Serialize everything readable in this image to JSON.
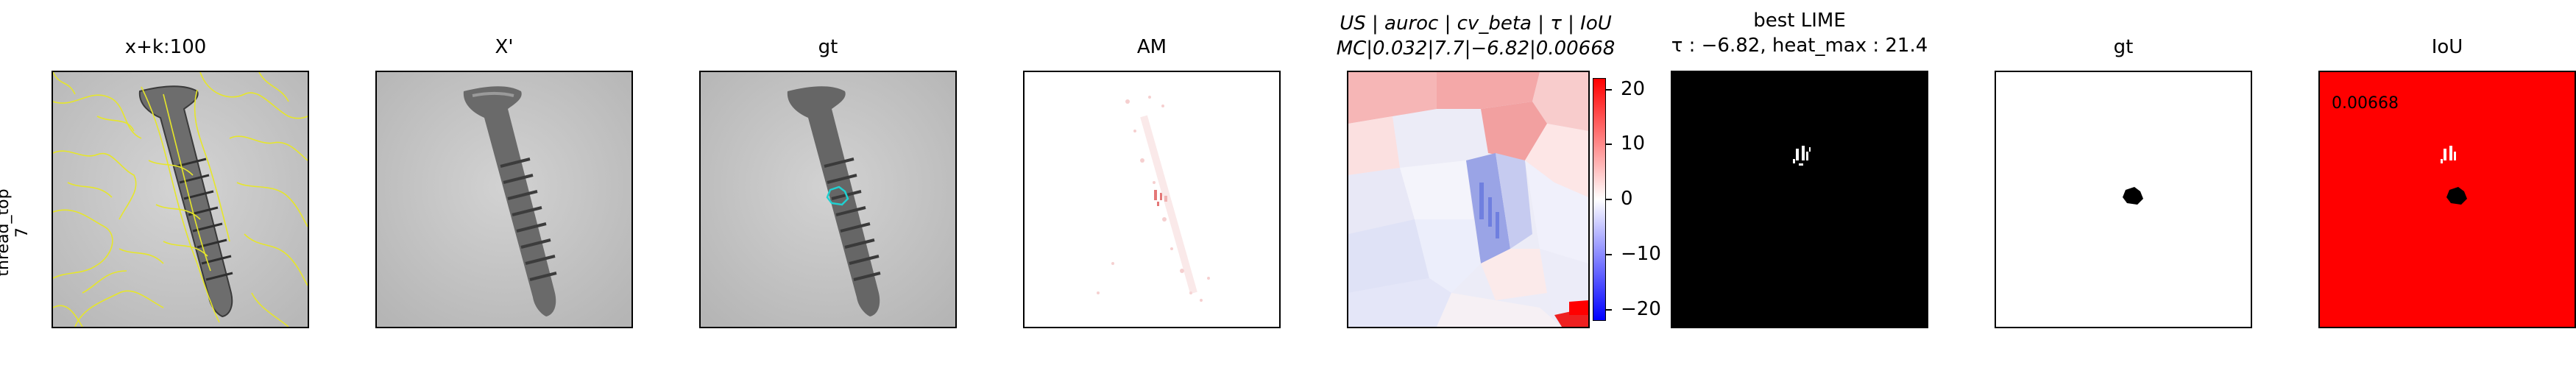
{
  "row_label": {
    "line1": "thread_top",
    "line2": "7"
  },
  "panels": [
    {
      "title": "x+k:100"
    },
    {
      "title": "X'"
    },
    {
      "title": "gt"
    },
    {
      "title": "AM"
    },
    {
      "title_line1": "US | auroc | cv_beta | τ | IoU",
      "title_line2": "MC|0.032|7.7|−6.82|0.00668"
    },
    {
      "title_line1": "best LIME",
      "title_line2": "τ : −6.82, heat_max : 21.4"
    },
    {
      "title": "gt"
    },
    {
      "title": "IoU",
      "annotation": "0.00668"
    }
  ],
  "chart_data": {
    "type": "heatmap",
    "colorbar": {
      "colormap": "bwr",
      "range": [
        -21.4,
        21.4
      ],
      "ticks": [
        20,
        10,
        0,
        -10,
        -20
      ],
      "tick_labels": [
        "20",
        "10",
        "0",
        "−10",
        "−20"
      ]
    },
    "metrics": {
      "method": "MC",
      "auroc": 0.032,
      "cv_beta": 7.7,
      "tau": -6.82,
      "iou": 0.00668,
      "heat_max": 21.4
    }
  },
  "colors": {
    "superpixel_outline": "#e6e62a",
    "gt_outline": "#20d0d0",
    "iou_background": "#ff0000",
    "lime_background": "#000000"
  }
}
